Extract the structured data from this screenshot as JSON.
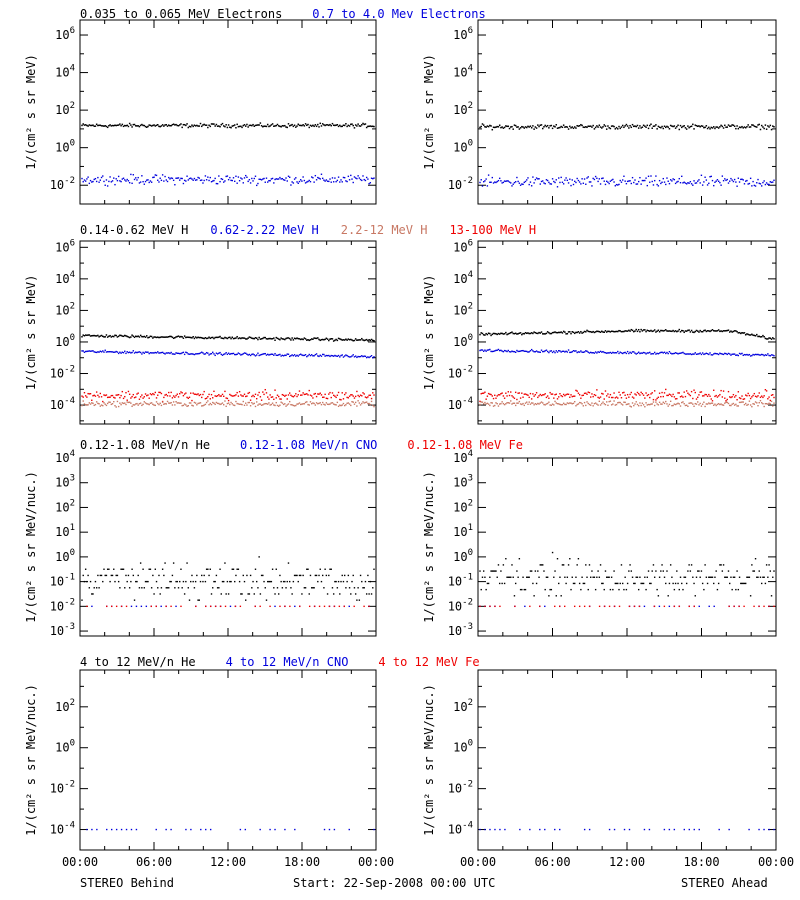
{
  "colors": {
    "black": "#000000",
    "blue": "#0000dd",
    "salmon": "#c87864",
    "red": "#ee0000"
  },
  "footer": {
    "left": "STEREO Behind",
    "center": "Start: 22-Sep-2008 00:00 UTC",
    "right": "STEREO Ahead"
  },
  "x_ticks": [
    "00:00",
    "06:00",
    "12:00",
    "18:00",
    "00:00"
  ],
  "chart_data": [
    {
      "type": "scatter",
      "row": 0,
      "title_parts": [
        {
          "text": "0.035 to 0.065 MeV Electrons",
          "color": "black"
        },
        {
          "text": "0.7 to 4.0 Mev Electrons",
          "color": "blue"
        }
      ],
      "ylabel": "1/(cm² s sr MeV)",
      "yscale": "log",
      "ylim_exp": [
        -3.0,
        6.8
      ],
      "ytick_exps": [
        -2,
        0,
        2,
        4,
        6
      ],
      "xlim_hours": [
        0,
        24
      ],
      "panels": [
        {
          "spacecraft": "STEREO Behind",
          "series": [
            {
              "color": "black",
              "level": 15,
              "scatter_dex": 0.05
            },
            {
              "color": "blue",
              "level": 0.02,
              "scatter_dex": 0.12
            }
          ]
        },
        {
          "spacecraft": "STEREO Ahead",
          "series": [
            {
              "color": "black",
              "level": 13,
              "scatter_dex": 0.06
            },
            {
              "color": "blue",
              "level": 0.015,
              "scatter_dex": 0.14
            }
          ]
        }
      ]
    },
    {
      "type": "scatter",
      "row": 1,
      "title_parts": [
        {
          "text": "0.14-0.62 MeV H",
          "color": "black"
        },
        {
          "text": "0.62-2.22 MeV H",
          "color": "blue"
        },
        {
          "text": "2.2-12 MeV H",
          "color": "salmon"
        },
        {
          "text": "13-100 MeV H",
          "color": "red"
        }
      ],
      "ylabel": "1/(cm² s sr MeV)",
      "yscale": "log",
      "ylim_exp": [
        -5.2,
        6.4
      ],
      "ytick_exps": [
        -4,
        -2,
        0,
        2,
        4,
        6
      ],
      "xlim_hours": [
        0,
        24
      ],
      "panels": [
        {
          "spacecraft": "STEREO Behind",
          "series": [
            {
              "color": "black",
              "level": 2.5,
              "level_end": 1.3,
              "scatter_dex": 0.04
            },
            {
              "color": "blue",
              "level": 0.25,
              "level_end": 0.12,
              "scatter_dex": 0.04
            },
            {
              "color": "red",
              "level": 0.0004,
              "scatter_dex": 0.15
            },
            {
              "color": "salmon",
              "level": 0.00012,
              "scatter_dex": 0.08
            }
          ]
        },
        {
          "spacecraft": "STEREO Ahead",
          "series": [
            {
              "color": "black",
              "level": 3,
              "level_mid": 5,
              "level_end": 1.5,
              "scatter_dex": 0.04
            },
            {
              "color": "blue",
              "level": 0.3,
              "level_end": 0.15,
              "scatter_dex": 0.04
            },
            {
              "color": "red",
              "level": 0.0004,
              "scatter_dex": 0.15
            },
            {
              "color": "salmon",
              "level": 0.00012,
              "scatter_dex": 0.08
            }
          ]
        }
      ]
    },
    {
      "type": "scatter",
      "row": 2,
      "title_parts": [
        {
          "text": "0.12-1.08 MeV/n He",
          "color": "black"
        },
        {
          "text": "0.12-1.08 MeV/n CNO",
          "color": "blue"
        },
        {
          "text": "0.12-1.08 MeV Fe",
          "color": "red"
        }
      ],
      "ylabel": "1/(cm² s sr MeV/nuc.)",
      "yscale": "log",
      "ylim_exp": [
        -3.2,
        4.0
      ],
      "ytick_exps": [
        -3,
        -2,
        -1,
        0,
        1,
        2,
        3,
        4
      ],
      "xlim_hours": [
        0,
        24
      ],
      "panels": [
        {
          "spacecraft": "STEREO Behind",
          "series": [
            {
              "color": "black",
              "level": 0.1,
              "scatter_dex": 0.35
            },
            {
              "color": "blue",
              "level": 0.01,
              "scatter_dex": 0.0
            },
            {
              "color": "red",
              "level": 0.01,
              "scatter_dex": 0.0
            }
          ]
        },
        {
          "spacecraft": "STEREO Ahead",
          "series": [
            {
              "color": "black",
              "level": 0.15,
              "scatter_dex": 0.35
            },
            {
              "color": "blue",
              "level": 0.01,
              "scatter_dex": 0.0
            },
            {
              "color": "red",
              "level": 0.01,
              "scatter_dex": 0.0
            }
          ]
        }
      ]
    },
    {
      "type": "scatter",
      "row": 3,
      "title_parts": [
        {
          "text": "4 to 12 MeV/n He",
          "color": "black"
        },
        {
          "text": "4 to 12 MeV/n CNO",
          "color": "blue"
        },
        {
          "text": "4 to 12 MeV Fe",
          "color": "red"
        }
      ],
      "ylabel": "1/(cm² s sr MeV/nuc.)",
      "yscale": "log",
      "ylim_exp": [
        -5.0,
        3.8
      ],
      "ytick_exps": [
        -4,
        -2,
        0,
        2
      ],
      "xlim_hours": [
        0,
        24
      ],
      "panels": [
        {
          "spacecraft": "STEREO Behind",
          "series": [
            {
              "color": "blue",
              "level": 0.0001,
              "scatter_dex": 0.0
            }
          ]
        },
        {
          "spacecraft": "STEREO Ahead",
          "series": [
            {
              "color": "blue",
              "level": 0.0001,
              "scatter_dex": 0.0
            }
          ]
        }
      ]
    }
  ]
}
